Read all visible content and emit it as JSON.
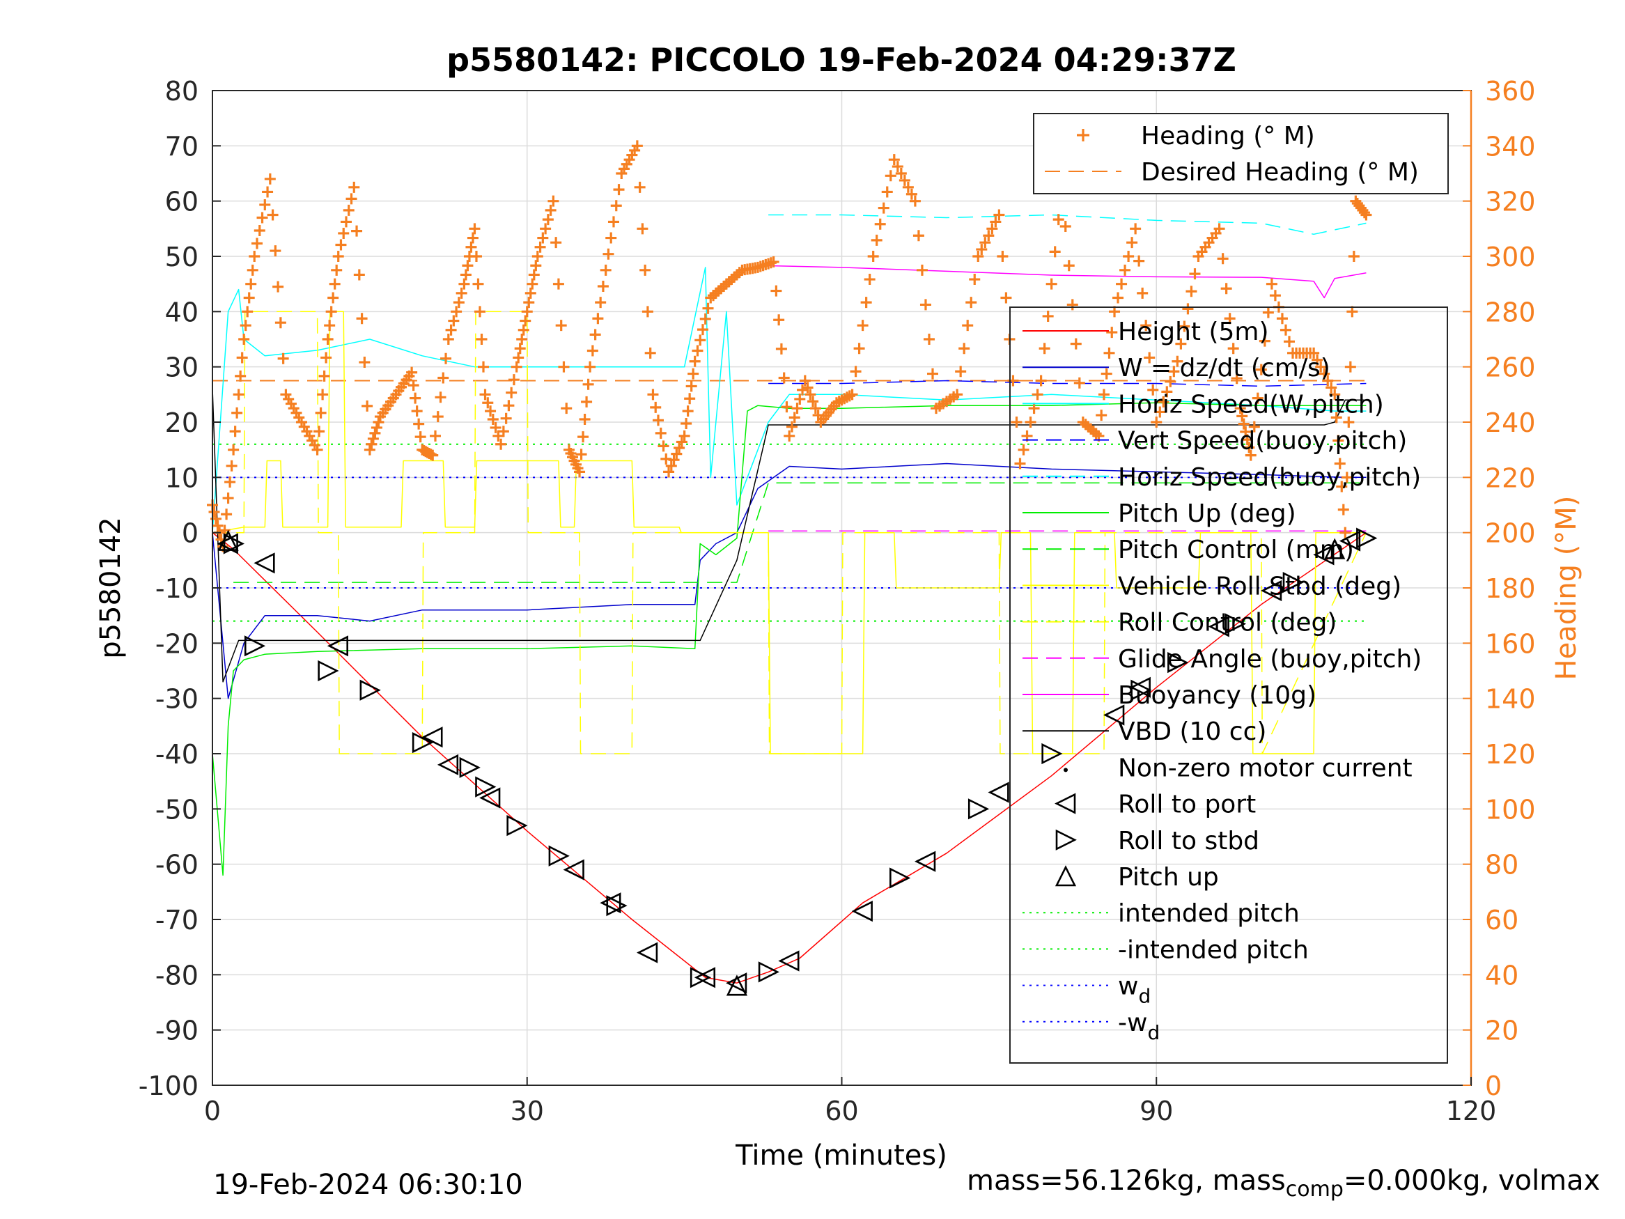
{
  "chart_data": {
    "type": "line",
    "title": "p5580142: PICCOLO 19-Feb-2024 04:29:37Z",
    "xlabel": "Time (minutes)",
    "ylabel": "p5580142",
    "y2label": "Heading (°M)",
    "xlim": [
      0,
      120
    ],
    "ylim": [
      -100,
      80
    ],
    "y2lim": [
      0,
      360
    ],
    "xticks": [
      0,
      30,
      60,
      90,
      120
    ],
    "yticks": [
      -100,
      -90,
      -80,
      -70,
      -60,
      -50,
      -40,
      -30,
      -20,
      -10,
      0,
      10,
      20,
      30,
      40,
      50,
      60,
      70,
      80
    ],
    "y2ticks": [
      0,
      20,
      40,
      60,
      80,
      100,
      120,
      140,
      160,
      180,
      200,
      220,
      240,
      260,
      280,
      300,
      320,
      340,
      360
    ],
    "grid": true,
    "legend_top": {
      "placement": "top-right",
      "entries": [
        {
          "label": "Heading (° M)",
          "color": "#f57f20",
          "style": "plus"
        },
        {
          "label": "Desired Heading (° M)",
          "color": "#f57f20",
          "style": "dash"
        }
      ]
    },
    "legend_main": {
      "placement": "right",
      "entries": [
        {
          "label": "Height (5m)",
          "color": "#ff0000",
          "style": "solid"
        },
        {
          "label": "W = dz/dt (cm/s)",
          "color": "#0000cc",
          "style": "solid"
        },
        {
          "label": "Horiz Speed(W,pitch)",
          "color": "#00ffff",
          "style": "solid"
        },
        {
          "label": "Vert Speed(buoy,pitch)",
          "color": "#0000ff",
          "style": "dash"
        },
        {
          "label": "Horiz Speed(buoy,pitch)",
          "color": "#00ffff",
          "style": "dash"
        },
        {
          "label": "Pitch Up (deg)",
          "color": "#00ee00",
          "style": "solid"
        },
        {
          "label": "Pitch Control (mm)",
          "color": "#00ee00",
          "style": "dash"
        },
        {
          "label": "Vehicle Roll Stbd (deg)",
          "color": "#ffff00",
          "style": "solid"
        },
        {
          "label": "Roll Control (deg)",
          "color": "#ffff00",
          "style": "dash"
        },
        {
          "label": "Glide Angle (buoy,pitch)",
          "color": "#ff00ff",
          "style": "dash"
        },
        {
          "label": "Buoyancy (10g)",
          "color": "#ff00ff",
          "style": "solid"
        },
        {
          "label": "VBD (10 cc)",
          "color": "#000000",
          "style": "solid"
        },
        {
          "label": "Non-zero motor current",
          "color": "#000000",
          "style": "dot"
        },
        {
          "label": "Roll to port",
          "color": "#000000",
          "style": "tri-left"
        },
        {
          "label": "Roll to stbd",
          "color": "#000000",
          "style": "tri-right"
        },
        {
          "label": "Pitch up",
          "color": "#000000",
          "style": "tri-up"
        },
        {
          "label": "intended pitch",
          "color": "#00ee00",
          "style": "dot"
        },
        {
          "label": "-intended pitch",
          "color": "#00ee00",
          "style": "dot"
        },
        {
          "label": "w",
          "sub": "d",
          "color": "#0000ff",
          "style": "dot"
        },
        {
          "label": "-w",
          "sub": "d",
          "color": "#0000ff",
          "style": "dot"
        }
      ]
    },
    "reference_lines": [
      {
        "name": "intended pitch",
        "y": 16,
        "color": "#00ee00",
        "x": [
          0,
          110
        ]
      },
      {
        "name": "-intended pitch",
        "y": -16,
        "color": "#00ee00",
        "x": [
          0,
          110
        ]
      },
      {
        "name": "w_d",
        "y": 10,
        "color": "#0000ff",
        "x": [
          0,
          110
        ]
      },
      {
        "name": "-w_d",
        "y": -10,
        "color": "#0000ff",
        "x": [
          0,
          110
        ]
      },
      {
        "name": "Desired Heading",
        "y2": 255,
        "color": "#f57f20",
        "x": [
          0,
          110
        ]
      }
    ],
    "series": [
      {
        "name": "Height (5m)",
        "color": "#ff0000",
        "width": 1.5,
        "x": [
          0,
          2,
          10,
          20,
          30,
          40,
          47,
          50,
          53,
          56,
          62,
          70,
          80,
          90,
          100,
          110
        ],
        "y": [
          0,
          -3,
          -18,
          -37,
          -54,
          -70,
          -80.5,
          -81.5,
          -79.5,
          -77,
          -67,
          -58,
          -44,
          -28,
          -13,
          0
        ]
      },
      {
        "name": "W = dz/dt (cm/s)",
        "color": "#0000cc",
        "width": 1.5,
        "x": [
          0,
          1.5,
          3,
          5,
          10,
          15,
          20,
          30,
          40,
          46,
          46.5,
          48,
          50,
          52,
          55,
          60,
          70,
          80,
          90,
          100,
          108,
          110
        ],
        "y": [
          0,
          -30,
          -20,
          -15,
          -15,
          -16,
          -14,
          -14,
          -13,
          -13,
          -5,
          -2,
          0,
          8,
          12,
          11.5,
          12.5,
          11.5,
          11,
          10.5,
          10,
          10
        ]
      },
      {
        "name": "Horiz Speed(W,pitch)",
        "color": "#00ffff",
        "width": 1.5,
        "x": [
          0,
          1.5,
          2.5,
          3,
          5,
          10,
          15,
          20,
          25,
          30,
          35,
          40,
          45,
          47,
          47.5,
          49,
          50,
          51,
          53,
          55,
          60,
          70,
          80,
          90,
          100,
          107,
          110
        ],
        "y": [
          0,
          40,
          44,
          35,
          32,
          33,
          35,
          32,
          30,
          30,
          30,
          30,
          30,
          48,
          10,
          40,
          5,
          10,
          20,
          25,
          25,
          24,
          25,
          24,
          23,
          22,
          22
        ]
      },
      {
        "name": "Vert Speed(buoy,pitch)",
        "color": "#0000ff",
        "width": 1.5,
        "dash": "22 12",
        "x": [
          53,
          60,
          70,
          80,
          90,
          100,
          110
        ],
        "y": [
          27,
          27,
          27.5,
          27,
          27,
          26.5,
          27
        ]
      },
      {
        "name": "Horiz Speed(buoy,pitch)",
        "color": "#00ffff",
        "width": 1.5,
        "dash": "22 12",
        "x": [
          53,
          60,
          70,
          80,
          90,
          100,
          105,
          110
        ],
        "y": [
          57.5,
          57.5,
          57,
          57.5,
          56.5,
          56,
          54,
          56
        ]
      },
      {
        "name": "Pitch Up (deg)",
        "color": "#00ee00",
        "width": 1.5,
        "x": [
          0,
          1,
          1.5,
          2,
          3,
          5,
          10,
          20,
          30,
          40,
          46,
          46.5,
          48,
          50,
          51,
          52,
          55,
          60,
          70,
          80,
          90,
          100,
          110
        ],
        "y": [
          -40,
          -62,
          -35,
          -25,
          -23,
          -22,
          -21.5,
          -21,
          -21,
          -20.5,
          -21,
          -2,
          -4,
          -1,
          22,
          23,
          22.5,
          22.5,
          23,
          23,
          23.5,
          23,
          23
        ]
      },
      {
        "name": "Pitch Control (mm)",
        "color": "#00ee00",
        "width": 1.5,
        "dash": "22 12",
        "x": [
          2,
          46,
          46.5,
          48,
          50,
          53,
          110
        ],
        "y": [
          -9,
          -9,
          -9,
          -9,
          -9,
          9,
          9
        ]
      },
      {
        "name": "Vehicle Roll Stbd (deg)",
        "color": "#ffff00",
        "width": 1.5,
        "x": [
          0,
          3,
          5,
          5.2,
          6.5,
          6.7,
          11,
          11.2,
          12.5,
          12.7,
          18,
          18.2,
          22,
          22.2,
          25,
          25.2,
          33,
          33.2,
          34.5,
          34.7,
          40,
          40.2,
          44.5,
          44.7,
          53,
          53.2,
          62,
          62.2,
          65,
          65.2,
          75,
          75.2,
          78,
          78.2,
          82,
          82.2,
          86,
          86.2,
          94,
          94.2,
          99,
          99.2,
          105,
          105.2,
          109,
          110
        ],
        "y": [
          0,
          1,
          1,
          13,
          13,
          1,
          1,
          40,
          40,
          1,
          1,
          13,
          13,
          1,
          1,
          13,
          13,
          1,
          1,
          13,
          13,
          1,
          1,
          0,
          0,
          -40,
          -40,
          0,
          0,
          -10,
          -10,
          0,
          0,
          -40,
          -40,
          0,
          0,
          -10,
          -10,
          0,
          0,
          -40,
          -40,
          0,
          0,
          0
        ]
      },
      {
        "name": "Roll Control (deg)",
        "color": "#ffff00",
        "width": 1.5,
        "dash": "22 12",
        "x": [
          0,
          3,
          3.1,
          10,
          10.1,
          12,
          12.1,
          20,
          20.1,
          25,
          25.1,
          30,
          30.1,
          35,
          35.1,
          40,
          40.1,
          45,
          53,
          53.1,
          60,
          60.1,
          75,
          75.1,
          85,
          85.1,
          100,
          100.1,
          110
        ],
        "y": [
          0,
          0,
          40,
          40,
          0,
          0,
          -40,
          -40,
          0,
          0,
          40,
          40,
          0,
          0,
          -40,
          -40,
          0,
          0,
          0,
          -40,
          -40,
          0,
          0,
          -40,
          -40,
          0,
          0,
          -40,
          0
        ]
      },
      {
        "name": "Glide Angle (buoy,pitch)",
        "color": "#ff00ff",
        "width": 1.5,
        "dash": "22 12",
        "x": [
          53,
          110
        ],
        "y": [
          0.3,
          0.3
        ]
      },
      {
        "name": "Buoyancy (10g)",
        "color": "#ff00ff",
        "width": 1.5,
        "x": [
          53,
          60,
          70,
          80,
          90,
          100,
          105,
          106,
          107,
          110
        ],
        "y": [
          48.3,
          48,
          47.3,
          46.6,
          46.3,
          46.2,
          45.5,
          42.5,
          46,
          47
        ]
      },
      {
        "name": "VBD (10 cc)",
        "color": "#000000",
        "width": 1.5,
        "x": [
          0,
          1,
          2.5,
          46,
          46.5,
          50,
          53,
          54,
          106,
          107,
          108,
          110
        ],
        "y": [
          26,
          -27,
          -19.5,
          -19.5,
          -19.5,
          -5,
          19.5,
          19.5,
          19.5,
          20,
          24,
          24
        ]
      }
    ],
    "heading_series": {
      "name": "Heading (° M)",
      "color": "#f57f20",
      "x": [
        0,
        1,
        2,
        3,
        4,
        5.5,
        7,
        8.5,
        10,
        11,
        12,
        13.5,
        15,
        16,
        17.5,
        19,
        20,
        21,
        22.5,
        24,
        25,
        26,
        27.5,
        29,
        30,
        31,
        32.5,
        34,
        35,
        36,
        37.5,
        39,
        40.5,
        42,
        43.5,
        45,
        46,
        47.5,
        49,
        50.5,
        52,
        53.5,
        55,
        56.5,
        58,
        59.5,
        61,
        63,
        65,
        67,
        69,
        71,
        73,
        75,
        77,
        79,
        81,
        83,
        84.5,
        86,
        88,
        90,
        92,
        94,
        96,
        98,
        99,
        101,
        103,
        105,
        107,
        108,
        109,
        110
      ],
      "y": [
        210,
        195,
        230,
        270,
        300,
        328,
        250,
        240,
        230,
        270,
        300,
        325,
        230,
        242,
        250,
        258,
        230,
        228,
        270,
        290,
        310,
        250,
        232,
        260,
        280,
        300,
        320,
        230,
        222,
        260,
        295,
        330,
        340,
        250,
        222,
        235,
        262,
        285,
        290,
        295,
        296,
        298,
        235,
        255,
        240,
        247,
        250,
        300,
        335,
        320,
        245,
        250,
        300,
        315,
        225,
        255,
        325,
        240,
        235,
        280,
        310,
        240,
        262,
        300,
        310,
        245,
        228,
        290,
        265,
        265,
        250,
        200,
        320,
        315
      ]
    },
    "marker_points": {
      "roll_to_port": {
        "x": [
          1.5,
          5,
          12,
          21,
          22.5,
          26.5,
          34.5,
          38,
          41.5,
          47,
          50,
          55,
          62,
          68,
          75,
          86,
          88.5,
          96,
          101,
          106,
          108.5
        ],
        "y": [
          -2,
          -5.5,
          -20.5,
          -37,
          -42,
          -48,
          -61,
          -67,
          -76,
          -80.5,
          -81.5,
          -77.5,
          -68.5,
          -59.5,
          -47,
          -33,
          -28,
          -17,
          -10.5,
          -4,
          -1.5
        ]
      },
      "roll_to_stbd": {
        "x": [
          2,
          4,
          11,
          15,
          20,
          24.5,
          26,
          29,
          33,
          38.5,
          46.5,
          53,
          65.5,
          73,
          80,
          88.5,
          92,
          97.5,
          103,
          110
        ],
        "y": [
          -2,
          -20.5,
          -25,
          -28.5,
          -38,
          -42.5,
          -46,
          -53,
          -58.5,
          -67.5,
          -80.5,
          -79.5,
          -62.5,
          -50,
          -40,
          -28.5,
          -23.5,
          -16.5,
          -9,
          -1
        ]
      },
      "pitch_up": {
        "x": [
          1.5,
          50,
          107
        ],
        "y": [
          -1.5,
          -82,
          -3
        ]
      }
    },
    "footer_left": "19-Feb-2024 06:30:10",
    "footer_right": {
      "a": "mass=56.126kg, mass",
      "sub": "comp",
      "b": "=0.000kg, volmax"
    }
  }
}
